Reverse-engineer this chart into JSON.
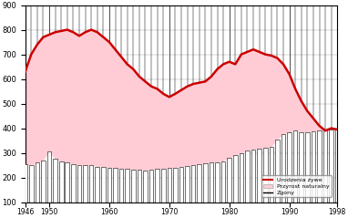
{
  "xlim": [
    1946,
    1998
  ],
  "ylim": [
    100,
    900
  ],
  "yticks": [
    100,
    200,
    300,
    400,
    500,
    600,
    700,
    800,
    900
  ],
  "xticks": [
    1946,
    1950,
    1960,
    1970,
    1980,
    1990,
    1998
  ],
  "background_color": "#ffffff",
  "years": [
    1946,
    1947,
    1948,
    1949,
    1950,
    1951,
    1952,
    1953,
    1954,
    1955,
    1956,
    1957,
    1958,
    1959,
    1960,
    1961,
    1962,
    1963,
    1964,
    1965,
    1966,
    1967,
    1968,
    1969,
    1970,
    1971,
    1972,
    1973,
    1974,
    1975,
    1976,
    1977,
    1978,
    1979,
    1980,
    1981,
    1982,
    1983,
    1984,
    1985,
    1986,
    1987,
    1988,
    1989,
    1990,
    1991,
    1992,
    1993,
    1994,
    1995,
    1996,
    1997,
    1998
  ],
  "births": [
    630,
    700,
    740,
    770,
    780,
    790,
    795,
    800,
    790,
    775,
    790,
    800,
    790,
    770,
    750,
    720,
    690,
    660,
    640,
    610,
    590,
    570,
    560,
    540,
    527,
    540,
    555,
    570,
    580,
    585,
    590,
    610,
    640,
    660,
    670,
    660,
    700,
    710,
    720,
    710,
    700,
    695,
    685,
    660,
    620,
    560,
    510,
    470,
    440,
    410,
    390,
    400,
    395
  ],
  "deaths": [
    255,
    250,
    260,
    270,
    305,
    275,
    265,
    260,
    255,
    250,
    250,
    250,
    245,
    245,
    240,
    238,
    235,
    235,
    232,
    232,
    230,
    232,
    235,
    237,
    238,
    240,
    245,
    247,
    250,
    253,
    257,
    260,
    263,
    267,
    280,
    290,
    300,
    310,
    315,
    318,
    320,
    325,
    355,
    375,
    385,
    390,
    385,
    385,
    388,
    390,
    393,
    395,
    395
  ],
  "birth_line_color": "#cc0000",
  "fill_color": "#ffccd5",
  "death_bar_fill": "#ffffff",
  "death_bar_edge": "#000000",
  "death_line_color": "#000000",
  "legend_labels": [
    "Urodzenia żywe",
    "Przyrost naturalny",
    "Zgony"
  ],
  "bar_bottom": 100
}
